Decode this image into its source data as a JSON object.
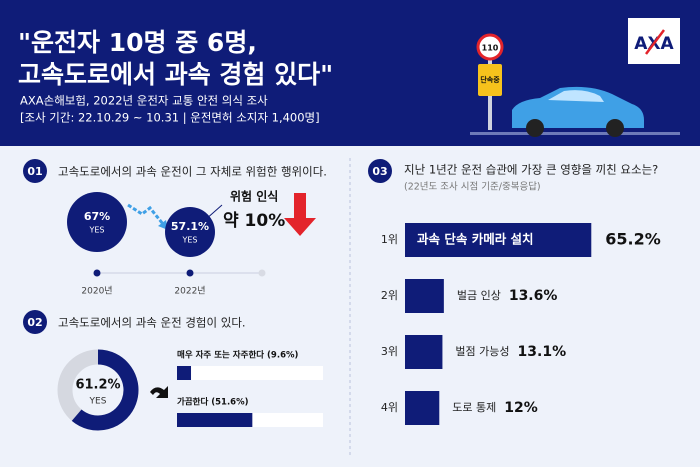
{
  "header": {
    "title_lines": [
      "\"운전자 10명 중 6명,",
      "고속도로에서 과속 경험 있다\""
    ],
    "source": "AXA손해보험, 2022년 운전자 교통 안전 의식 조사",
    "period": "[조사 기간: 22.10.29 ~ 10.31 | 운전면허 소지자 1,400명]",
    "logo": "AXA",
    "sign_number": "110",
    "sign_plate": "단속중"
  },
  "section1": {
    "number": "01",
    "title": "고속도로에서의 과속 운전이 그 자체로 위험한 행위이다.",
    "points": [
      {
        "year": "2020년",
        "value": 67,
        "value_label": "67%",
        "sub": "YES"
      },
      {
        "year": "2022년",
        "value": 57.1,
        "value_label": "57.1%",
        "sub": "YES"
      }
    ],
    "callout_title": "위험 인식",
    "callout_value": "약 10%"
  },
  "section2": {
    "number": "02",
    "title": "고속도로에서의 과속 운전 경험이 있다.",
    "donut": {
      "value": 61.2,
      "value_label": "61.2%",
      "sub": "YES"
    },
    "bars": [
      {
        "label": "매우 자주 또는 자주한다 (9.6%)",
        "value": 9.6
      },
      {
        "label": "가끔한다 (51.6%)",
        "value": 51.6
      }
    ]
  },
  "section3": {
    "number": "03",
    "title": "지난 1년간 운전 습관에 가장 큰 영향을 끼친 요소는?",
    "subtitle": "(22년도 조사 시점 기준/중복응답)",
    "items": [
      {
        "rank": "1위",
        "label": "과속 단속 카메라 설치",
        "value": 65.2,
        "value_label": "65.2%"
      },
      {
        "rank": "2위",
        "label": "벌금 인상",
        "value": 13.6,
        "value_label": "13.6%"
      },
      {
        "rank": "3위",
        "label": "벌점 가능성",
        "value": 13.1,
        "value_label": "13.1%"
      },
      {
        "rank": "4위",
        "label": "도로 통제",
        "value": 12,
        "value_label": "12%"
      }
    ]
  }
}
